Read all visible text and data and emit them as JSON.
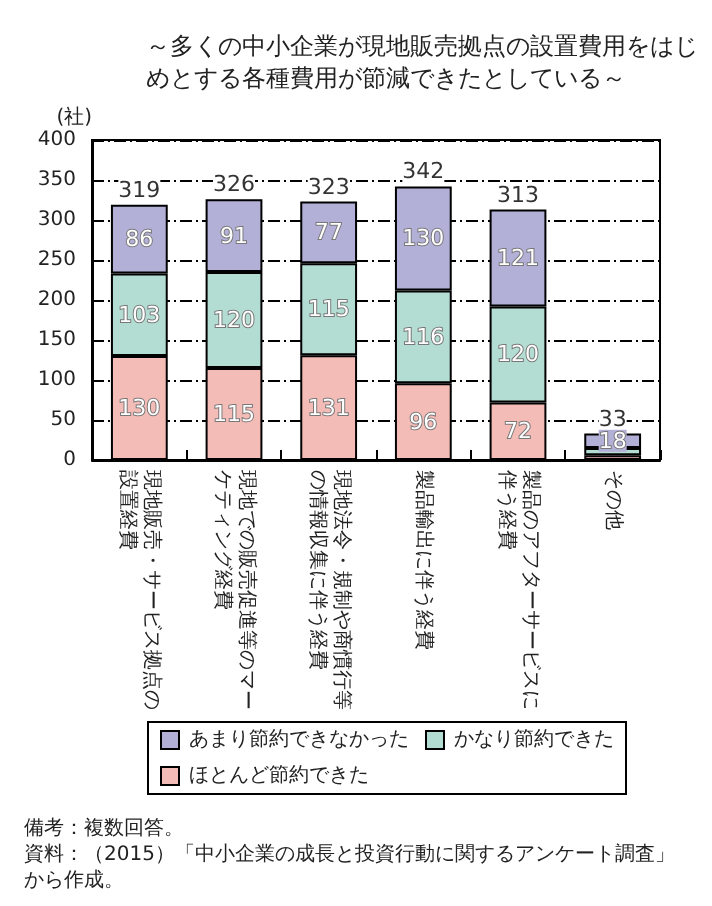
{
  "chart_data": {
    "type": "bar",
    "title": "～多くの中小企業が現地販売拠点の設置費用をはじめとする各種費用が節減できたとしている～",
    "ylabel": "(社)",
    "categories": [
      "現地販売・サービス拠点の設置経費",
      "現地での販売促進等のマーケティング経費",
      "現地法令・規制や商慣行等の情報収集に伴う経費",
      "製品輸出に伴う経費",
      "製品のアフターサービスに伴う経費",
      "その他"
    ],
    "stacked": true,
    "series": [
      {
        "name": "ほとんど節約できた",
        "color": "#f4bcb7",
        "values": [
          130,
          115,
          131,
          96,
          72,
          6
        ],
        "value_labels": [
          "130",
          "115",
          "131",
          "96",
          "72",
          null
        ]
      },
      {
        "name": "かなり節約できた",
        "color": "#b3ddd3",
        "values": [
          103,
          120,
          115,
          116,
          120,
          9
        ],
        "value_labels": [
          "103",
          "120",
          "115",
          "116",
          "120",
          null
        ]
      },
      {
        "name": "あまり節約できなかった",
        "color": "#b3b0d8",
        "values": [
          86,
          91,
          77,
          130,
          121,
          18
        ],
        "value_labels": [
          "86",
          "91",
          "77",
          "130",
          "121",
          "18"
        ]
      }
    ],
    "totals": [
      "319",
      "326",
      "323",
      "342",
      "313",
      "33"
    ],
    "ylim": [
      0,
      400
    ],
    "yticks": [
      0,
      50,
      100,
      150,
      200,
      250,
      300,
      350,
      400
    ],
    "grid": "y",
    "legend": "bottom",
    "annotations": [
      "備考：複数回答。",
      "資料：（2015）「中小企業の成長と投資行動に関するアンケート調査」から作成。"
    ]
  }
}
